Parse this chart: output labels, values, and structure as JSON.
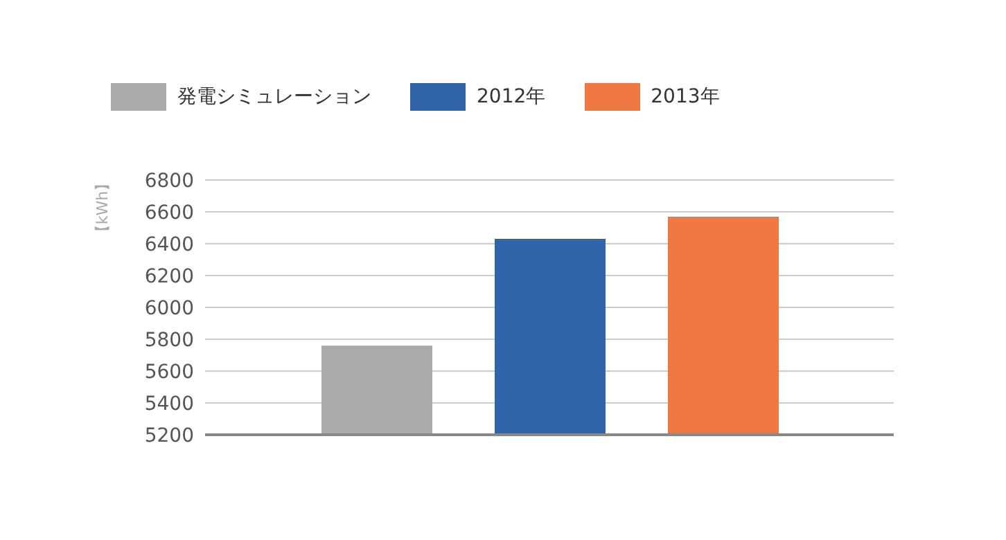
{
  "chart_data": {
    "type": "bar",
    "ylabel": "【kWh】",
    "categories": [
      null
    ],
    "series": [
      {
        "name": "発電シミュレーション",
        "color": "#aaaaaa",
        "values": [
          5760
        ]
      },
      {
        "name": "2012年",
        "color": "#3165aa",
        "values": [
          6430
        ]
      },
      {
        "name": "2013年",
        "color": "#ef7843",
        "values": [
          6570
        ]
      }
    ],
    "ylim": [
      5200,
      6800
    ],
    "yticks": [
      5200,
      5400,
      5600,
      5800,
      6000,
      6200,
      6400,
      6600,
      6800
    ],
    "grid": "y",
    "legend": "top left"
  }
}
